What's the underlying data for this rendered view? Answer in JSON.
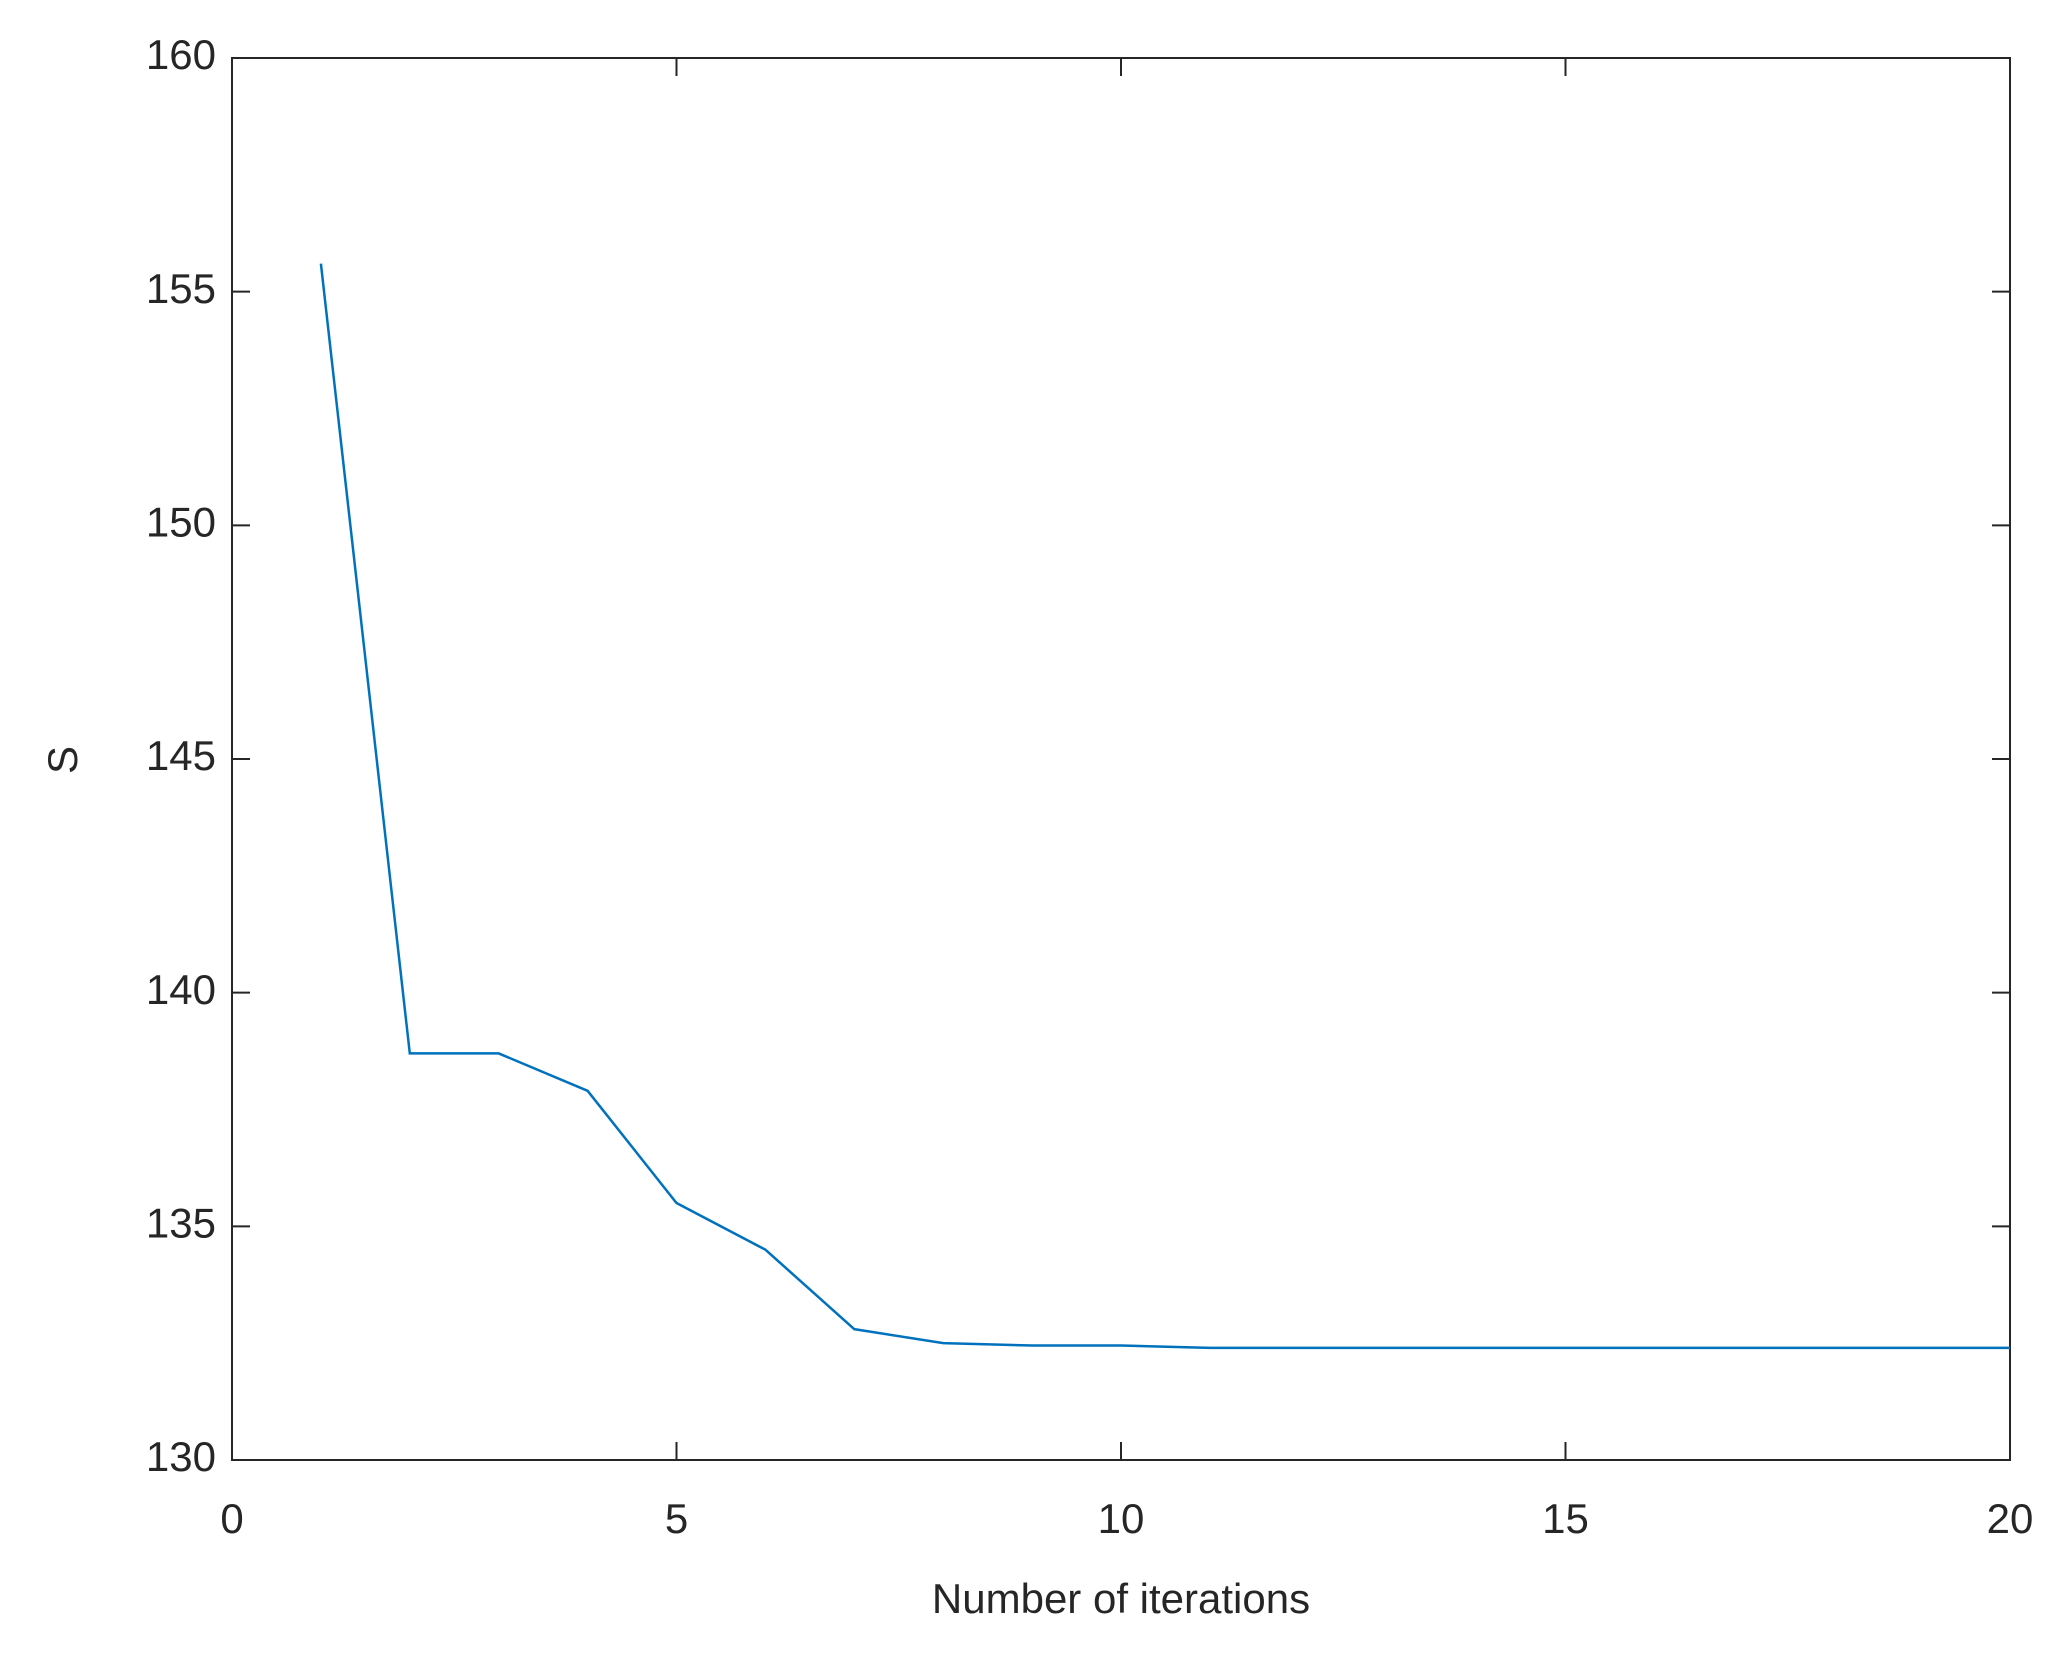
{
  "chart_data": {
    "type": "line",
    "x_label": "Number of iterations",
    "y_label": "S",
    "x": [
      1,
      2,
      3,
      4,
      5,
      6,
      7,
      8,
      9,
      10,
      11,
      12,
      13,
      14,
      15,
      16,
      17,
      18,
      19,
      20
    ],
    "values": [
      155.6,
      138.7,
      138.7,
      137.9,
      135.5,
      134.5,
      132.8,
      132.5,
      132.45,
      132.45,
      132.4,
      132.4,
      132.4,
      132.4,
      132.4,
      132.4,
      132.4,
      132.4,
      132.4,
      132.4
    ],
    "color": "#0072bd",
    "xlim": [
      0,
      20
    ],
    "xticks": [
      0,
      5,
      10,
      15,
      20
    ],
    "ylim": [
      130,
      160
    ],
    "yticks": [
      130,
      135,
      140,
      145,
      150,
      155,
      160
    ],
    "grid": false
  }
}
